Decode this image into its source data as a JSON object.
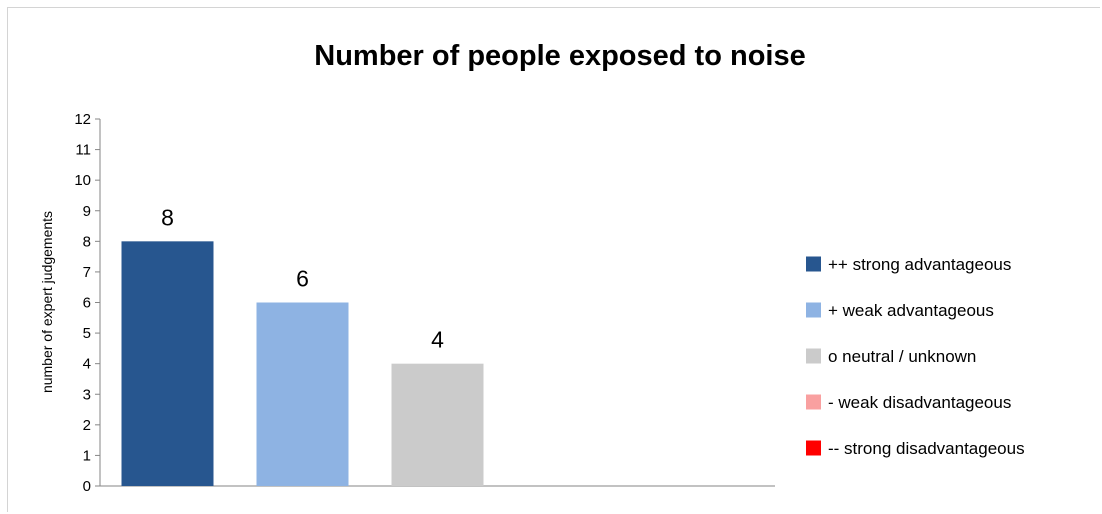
{
  "chart_data": {
    "type": "bar",
    "title": "Number of people exposed to noise",
    "ylabel": "number of expert judgements",
    "xlabel": "",
    "ylim": [
      0,
      12
    ],
    "yticks": [
      0,
      1,
      2,
      3,
      4,
      5,
      6,
      7,
      8,
      9,
      10,
      11,
      12
    ],
    "grid": false,
    "legend_position": "right",
    "categories": [
      "++ strong advantageous",
      "+ weak advantageous",
      "o neutral / unknown",
      "- weak disadvantageous",
      "-- strong disadvantageous"
    ],
    "values": [
      8,
      6,
      4,
      0,
      0
    ],
    "data_labels": [
      "8",
      "6",
      "4",
      "",
      ""
    ],
    "colors": [
      "#27568f",
      "#8eb3e3",
      "#cbcbcb",
      "#f9a0a0",
      "#ff0000"
    ]
  }
}
